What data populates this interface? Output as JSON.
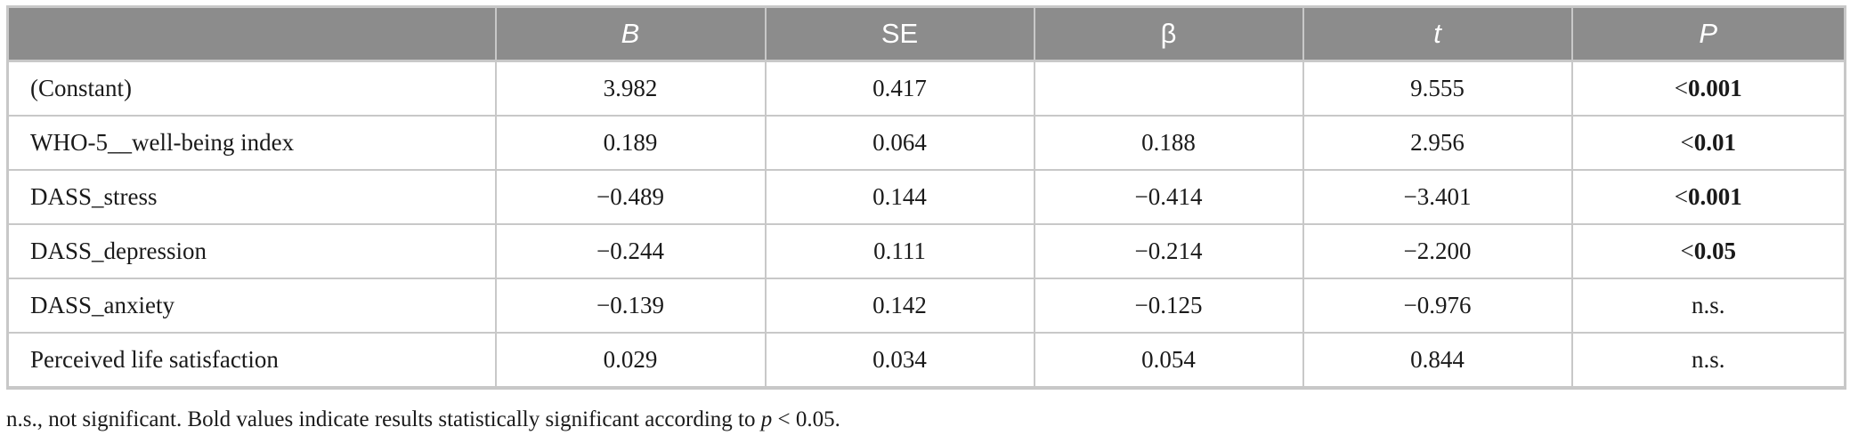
{
  "table": {
    "headers": [
      {
        "label": "",
        "italic": false
      },
      {
        "label": "B",
        "italic": true
      },
      {
        "label": "SE",
        "italic": false
      },
      {
        "label": "β",
        "italic": false
      },
      {
        "label": "t",
        "italic": true
      },
      {
        "label": "P",
        "italic": true
      }
    ],
    "rows": [
      {
        "label": "(Constant)",
        "B": "3.982",
        "SE": "0.417",
        "beta": "",
        "t": "9.555",
        "P": {
          "prefix": "<",
          "value": "0.001",
          "bold": true
        }
      },
      {
        "label": "WHO-5__well-being index",
        "B": "0.189",
        "SE": "0.064",
        "beta": "0.188",
        "t": "2.956",
        "P": {
          "prefix": "<",
          "value": "0.01",
          "bold": true
        }
      },
      {
        "label": "DASS_stress",
        "B": "−0.489",
        "SE": "0.144",
        "beta": "−0.414",
        "t": "−3.401",
        "P": {
          "prefix": "<",
          "value": "0.001",
          "bold": true
        }
      },
      {
        "label": "DASS_depression",
        "B": "−0.244",
        "SE": "0.111",
        "beta": "−0.214",
        "t": "−2.200",
        "P": {
          "prefix": "<",
          "value": "0.05",
          "bold": true
        }
      },
      {
        "label": "DASS_anxiety",
        "B": "−0.139",
        "SE": "0.142",
        "beta": "−0.125",
        "t": "−0.976",
        "P": {
          "prefix": "",
          "value": "n.s.",
          "bold": false
        }
      },
      {
        "label": "Perceived life satisfaction",
        "B": "0.029",
        "SE": "0.034",
        "beta": "0.054",
        "t": "0.844",
        "P": {
          "prefix": "",
          "value": "n.s.",
          "bold": false
        }
      }
    ]
  },
  "footnote": {
    "text_before": "n.s., not significant. Bold values indicate results statistically significant according to ",
    "variable": "p",
    "text_after": " < 0.05."
  }
}
